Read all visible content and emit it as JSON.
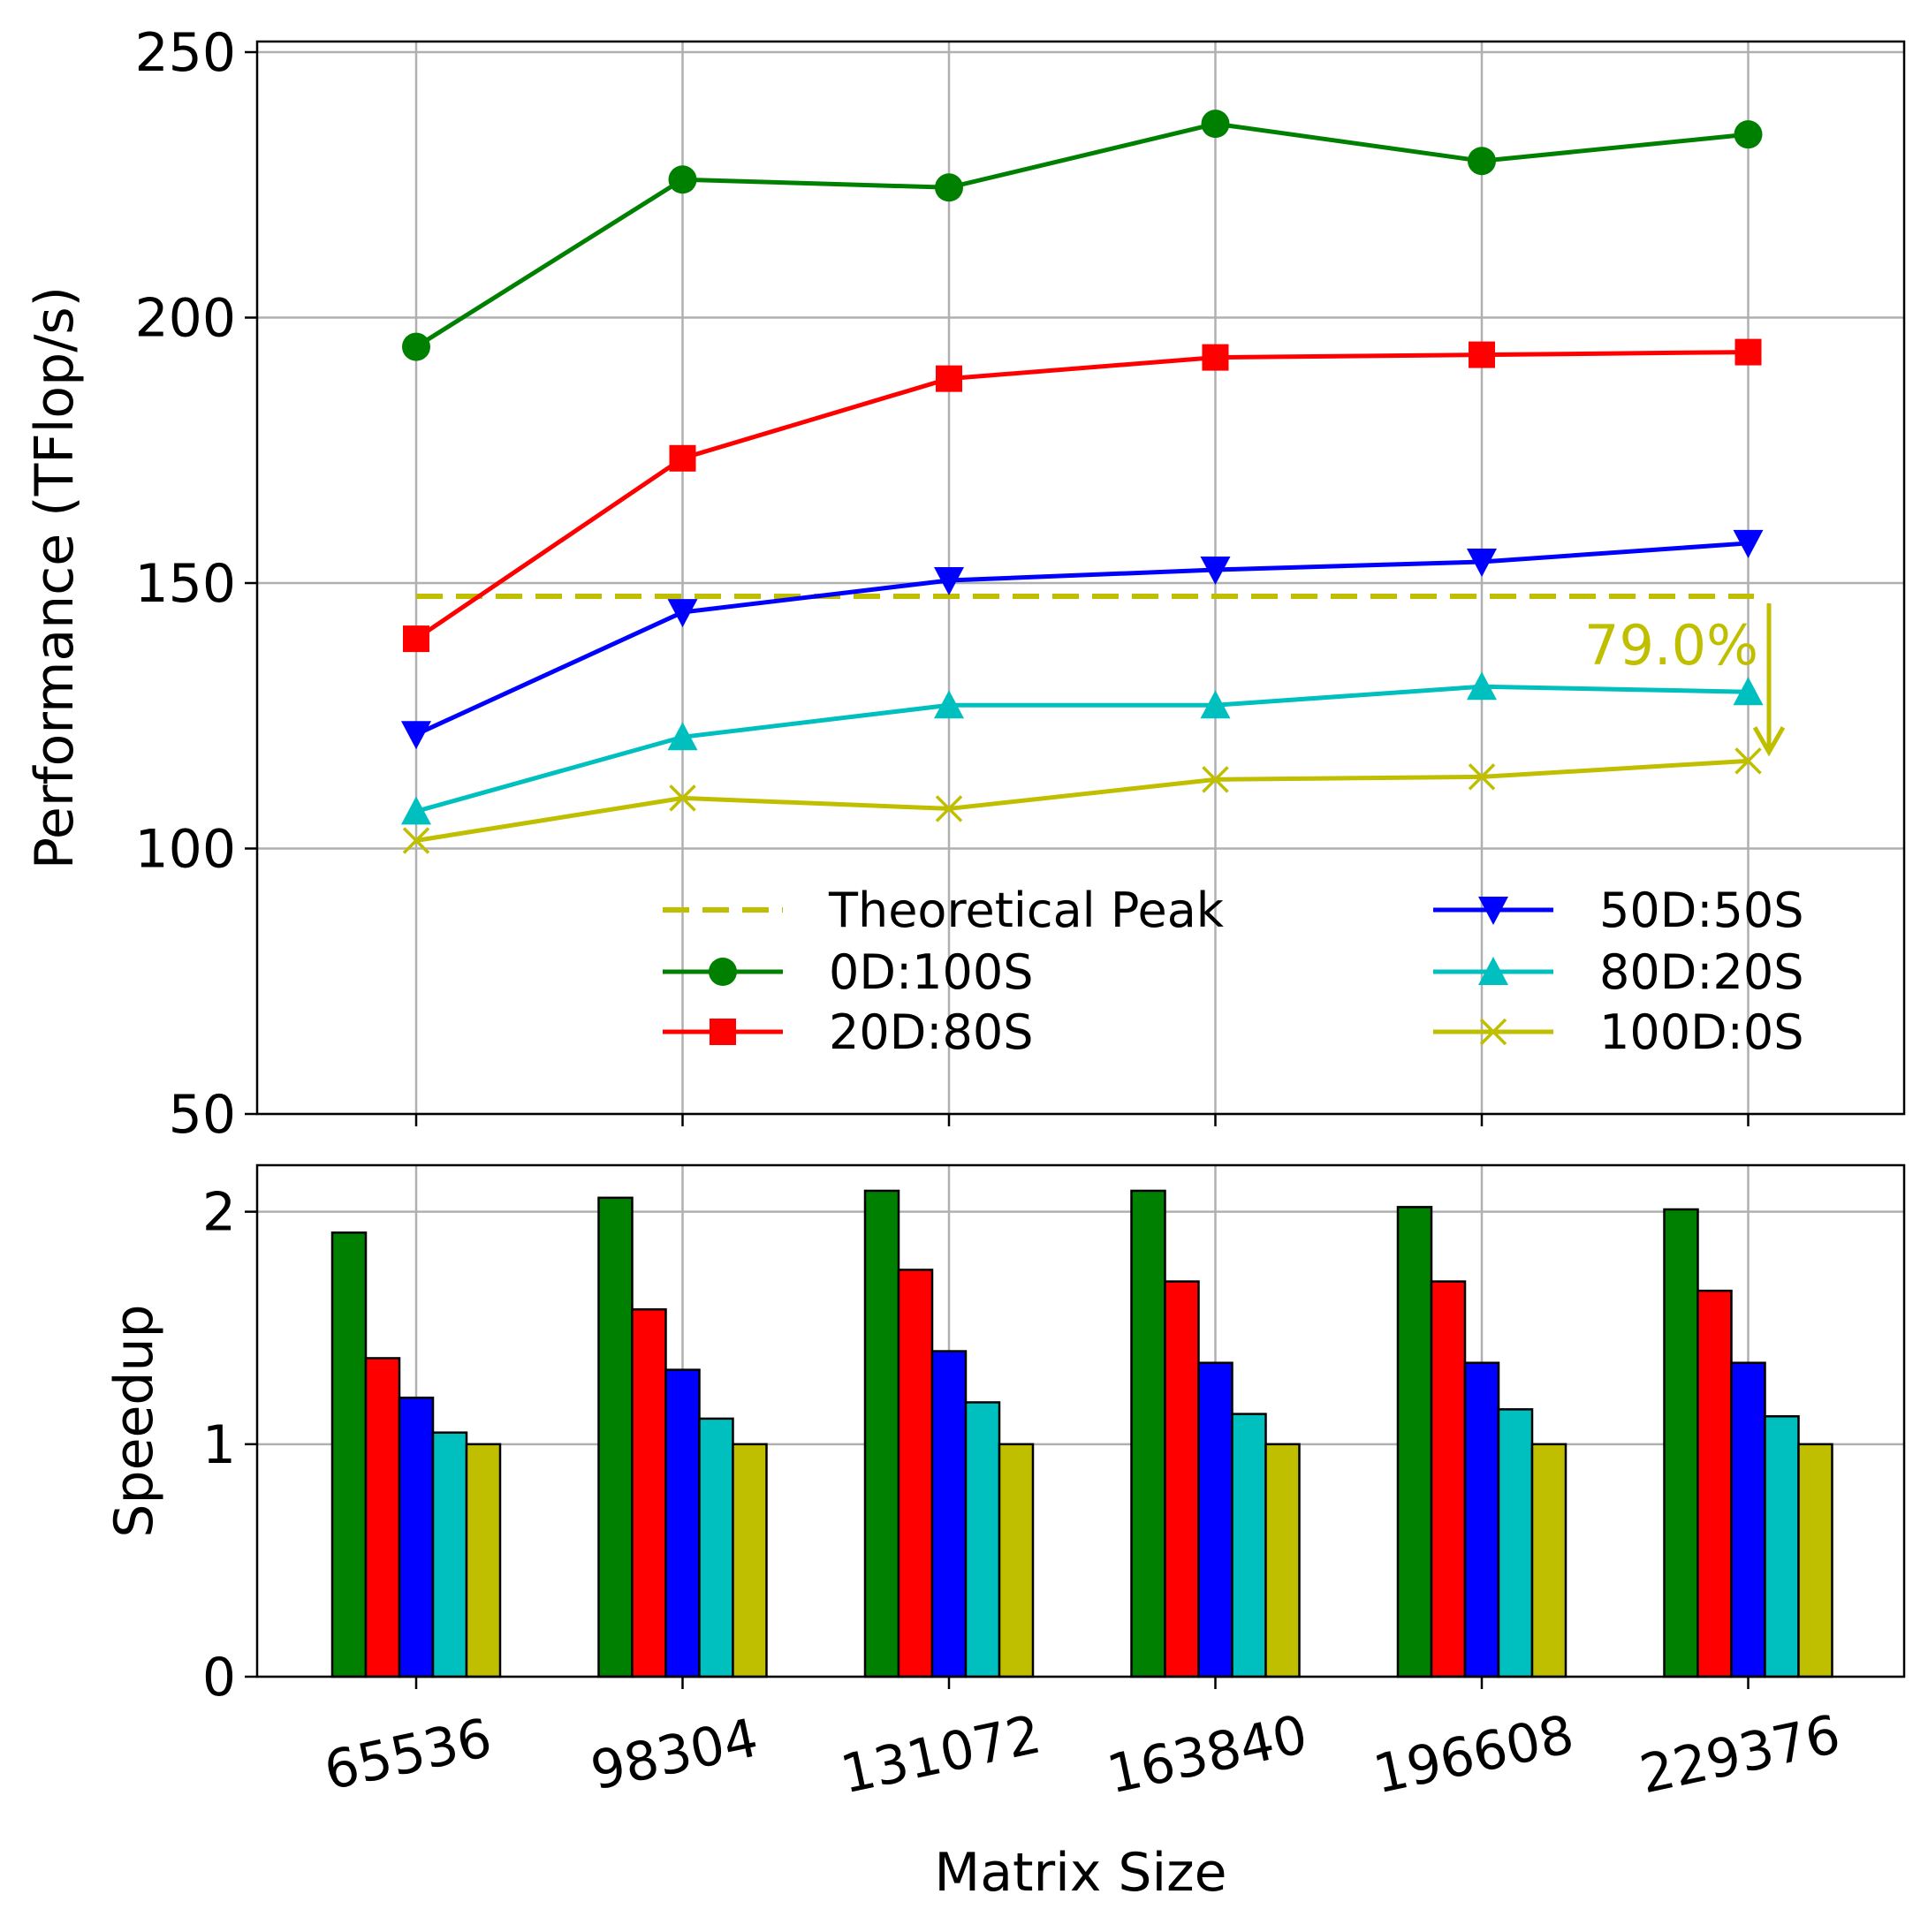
{
  "chart_data": [
    {
      "type": "line",
      "ylabel": "Performance (TFlop/s)",
      "xlabel": "",
      "x": [
        "65536",
        "98304",
        "131072",
        "163840",
        "196608",
        "229376"
      ],
      "ylim": [
        50,
        252
      ],
      "yticks": [
        50,
        100,
        150,
        200,
        250
      ],
      "grid": true,
      "legend": {
        "placement": "lower-right",
        "columns": 2
      },
      "series": [
        {
          "name": "Theoretical Peak",
          "style": "dashed",
          "marker": "none",
          "color": "#bfbf00",
          "values": [
            147.5,
            147.5,
            147.5,
            147.5,
            147.5,
            147.5
          ]
        },
        {
          "name": "0D:100S",
          "marker": "circle",
          "color": "#008000",
          "values": [
            194.5,
            226,
            224.5,
            236.5,
            229.5,
            234.5
          ]
        },
        {
          "name": "20D:80S",
          "marker": "square",
          "color": "#ff0000",
          "values": [
            139.5,
            173.5,
            188.5,
            192.5,
            193,
            193.5
          ]
        },
        {
          "name": "50D:50S",
          "marker": "triangle-down",
          "color": "#0000ff",
          "values": [
            121.5,
            144.5,
            150.5,
            152.5,
            154,
            157.5
          ]
        },
        {
          "name": "80D:20S",
          "marker": "triangle-up",
          "color": "#00bfbf",
          "values": [
            107,
            121,
            127,
            127,
            130.5,
            129.5
          ]
        },
        {
          "name": "100D:0S",
          "marker": "x",
          "color": "#bfbf00",
          "values": [
            101.5,
            109.5,
            107.5,
            113,
            113.5,
            116.5
          ]
        }
      ],
      "annotations": [
        {
          "text": "79.0%",
          "color": "#bfbf00",
          "arrow_x": "229376",
          "arrow_from": 147.5,
          "arrow_to": 116.5
        }
      ]
    },
    {
      "type": "bar",
      "ylabel": "Speedup",
      "xlabel": "Matrix Size",
      "categories": [
        "65536",
        "98304",
        "131072",
        "163840",
        "196608",
        "229376"
      ],
      "ylim": [
        0,
        2.2
      ],
      "yticks": [
        0,
        1,
        2
      ],
      "grid": true,
      "series": [
        {
          "name": "0D:100S",
          "color": "#008000",
          "values": [
            1.91,
            2.06,
            2.09,
            2.09,
            2.02,
            2.01
          ]
        },
        {
          "name": "20D:80S",
          "color": "#ff0000",
          "values": [
            1.37,
            1.58,
            1.75,
            1.7,
            1.7,
            1.66
          ]
        },
        {
          "name": "50D:50S",
          "color": "#0000ff",
          "values": [
            1.2,
            1.32,
            1.4,
            1.35,
            1.35,
            1.35
          ]
        },
        {
          "name": "80D:20S",
          "color": "#00bfbf",
          "values": [
            1.05,
            1.11,
            1.18,
            1.13,
            1.15,
            1.12
          ]
        },
        {
          "name": "100D:0S",
          "color": "#bfbf00",
          "values": [
            1.0,
            1.0,
            1.0,
            1.0,
            1.0,
            1.0
          ]
        }
      ]
    }
  ]
}
